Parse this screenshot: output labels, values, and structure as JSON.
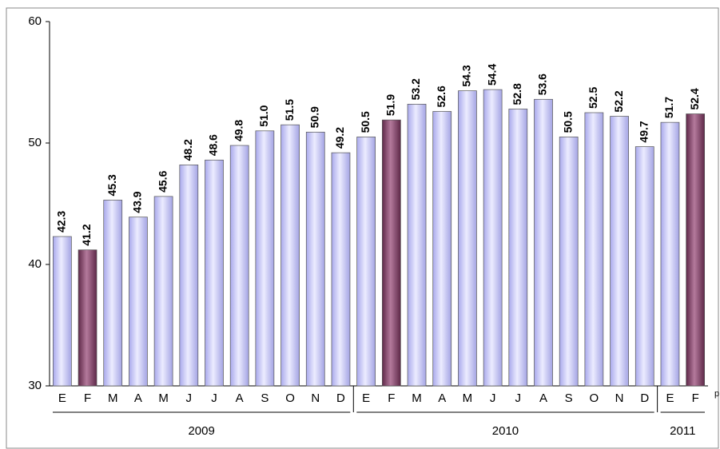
{
  "chart_data": {
    "type": "grouped-bar",
    "groups": [
      {
        "name": "2009",
        "categories": [
          "E",
          "F",
          "M",
          "A",
          "M",
          "J",
          "J",
          "A",
          "S",
          "O",
          "N",
          "D"
        ],
        "values": [
          42.3,
          41.2,
          45.3,
          43.9,
          45.6,
          48.2,
          48.6,
          49.8,
          51.0,
          51.5,
          50.9,
          49.2
        ],
        "value_labels": [
          "42.3",
          "41.2",
          "45.3",
          "43.9",
          "45.6",
          "48.2",
          "48.6",
          "49.8",
          "51.0",
          "51.5",
          "50.9",
          "49.2"
        ],
        "colors": [
          "lavender",
          "plum",
          "lavender",
          "lavender",
          "lavender",
          "lavender",
          "lavender",
          "lavender",
          "lavender",
          "lavender",
          "lavender",
          "lavender"
        ]
      },
      {
        "name": "2010",
        "categories": [
          "E",
          "F",
          "M",
          "A",
          "M",
          "J",
          "J",
          "A",
          "S",
          "O",
          "N",
          "D"
        ],
        "values": [
          50.5,
          51.9,
          53.2,
          52.6,
          54.3,
          54.4,
          52.8,
          53.6,
          50.5,
          52.5,
          52.2,
          49.7
        ],
        "value_labels": [
          "50.5",
          "51.9",
          "53.2",
          "52.6",
          "54.3",
          "54.4",
          "52.8",
          "53.6",
          "50.5",
          "52.5",
          "52.2",
          "49.7"
        ],
        "colors": [
          "lavender",
          "plum",
          "lavender",
          "lavender",
          "lavender",
          "lavender",
          "lavender",
          "lavender",
          "lavender",
          "lavender",
          "lavender",
          "lavender"
        ]
      },
      {
        "name": "2011",
        "categories": [
          "E",
          "F"
        ],
        "values": [
          51.7,
          52.4
        ],
        "value_labels": [
          "51.7",
          "52.4"
        ],
        "colors": [
          "lavender",
          "plum"
        ]
      }
    ],
    "note": "p",
    "ylim": [
      30,
      60
    ],
    "yticks": [
      30,
      40,
      50,
      60
    ],
    "grid": false
  }
}
